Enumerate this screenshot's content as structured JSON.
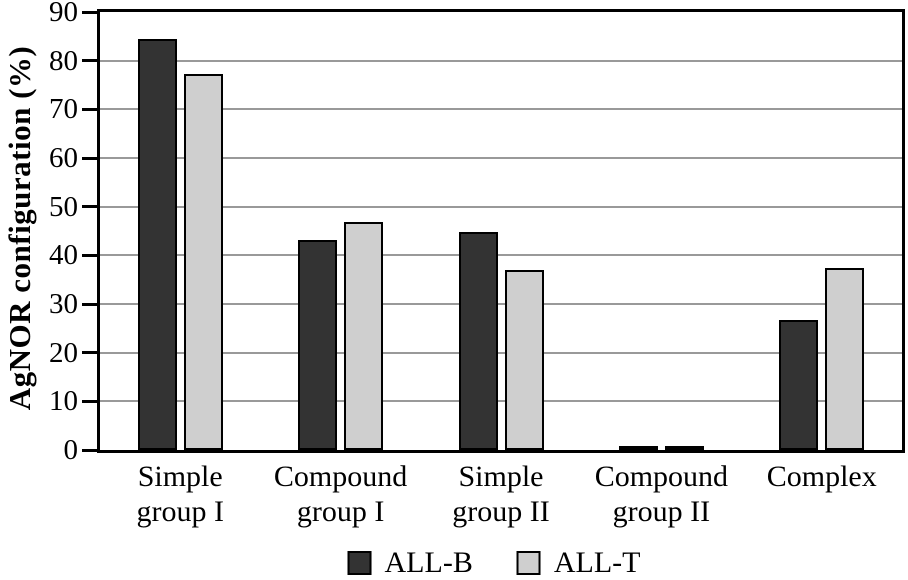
{
  "chart_data": {
    "type": "bar",
    "title": "",
    "xlabel": "",
    "ylabel": "AgNOR configuration (%)",
    "ylim": [
      0,
      90
    ],
    "yticks": [
      0,
      10,
      20,
      30,
      40,
      50,
      60,
      70,
      80,
      90
    ],
    "grid": true,
    "gridline_color": "#999999",
    "axis_color": "#000000",
    "background_color": "#ffffff",
    "legend_position": "bottom",
    "categories": [
      "Simple group I",
      "Compound group I",
      "Simple group II",
      "Compound group II",
      "Complex"
    ],
    "categories_display": [
      "Simple\ngroup I",
      "Compound\ngroup I",
      "Simple\ngroup II",
      "Compound\ngroup II",
      "Complex"
    ],
    "series": [
      {
        "name": "ALL-B",
        "color": "#333333",
        "border_color": "#000000",
        "values": [
          84.5,
          43.2,
          44.8,
          0.6,
          26.8
        ]
      },
      {
        "name": "ALL-T",
        "color": "#cfcfcf",
        "border_color": "#000000",
        "values": [
          77.3,
          46.8,
          36.9,
          0.9,
          37.5
        ]
      }
    ]
  }
}
